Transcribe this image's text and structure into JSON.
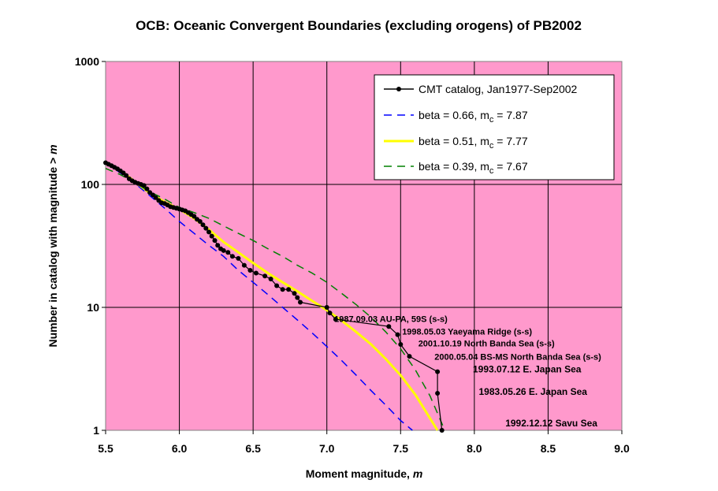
{
  "chart_data": {
    "type": "line",
    "title": "OCB: Oceanic Convergent Boundaries (excluding orogens) of PB2002",
    "xlabel": "Moment magnitude, ",
    "xlabel_italic": "m",
    "ylabel": "Number in catalog with magnitude  >  ",
    "ylabel_italic": "m",
    "xlim": [
      5.5,
      9.0
    ],
    "ylim": [
      1,
      1000
    ],
    "y_scale": "log",
    "grid": true,
    "x_ticks": [
      "5.5",
      "6.0",
      "6.5",
      "7.0",
      "7.5",
      "8.0",
      "8.5",
      "9.0"
    ],
    "y_ticks": [
      "1",
      "10",
      "100",
      "1000"
    ],
    "legend_position": "top-right",
    "colors": {
      "plot_bg": "#ff99cc",
      "catalog": "#000000",
      "beta066": "#0000ff",
      "beta051": "#ffff00",
      "beta039": "#008000"
    },
    "series": [
      {
        "name": "CMT catalog, Jan1977-Sep2002",
        "style": "black-line-markers",
        "points": [
          [
            5.5,
            150
          ],
          [
            5.52,
            146
          ],
          [
            5.54,
            142
          ],
          [
            5.56,
            138
          ],
          [
            5.58,
            134
          ],
          [
            5.6,
            129
          ],
          [
            5.62,
            124
          ],
          [
            5.64,
            118
          ],
          [
            5.66,
            111
          ],
          [
            5.68,
            107
          ],
          [
            5.7,
            104
          ],
          [
            5.72,
            102
          ],
          [
            5.74,
            100
          ],
          [
            5.76,
            98
          ],
          [
            5.78,
            92
          ],
          [
            5.8,
            86
          ],
          [
            5.82,
            82
          ],
          [
            5.84,
            78
          ],
          [
            5.86,
            74
          ],
          [
            5.88,
            71
          ],
          [
            5.9,
            70
          ],
          [
            5.92,
            68
          ],
          [
            5.94,
            66
          ],
          [
            5.96,
            65
          ],
          [
            5.98,
            64
          ],
          [
            6.0,
            63
          ],
          [
            6.02,
            62
          ],
          [
            6.04,
            61
          ],
          [
            6.06,
            59
          ],
          [
            6.08,
            57
          ],
          [
            6.1,
            55
          ],
          [
            6.12,
            52
          ],
          [
            6.14,
            50
          ],
          [
            6.16,
            47
          ],
          [
            6.18,
            44
          ],
          [
            6.2,
            41
          ],
          [
            6.22,
            38
          ],
          [
            6.24,
            35
          ],
          [
            6.26,
            32
          ],
          [
            6.28,
            30
          ],
          [
            6.3,
            29
          ],
          [
            6.33,
            28
          ],
          [
            6.36,
            26
          ],
          [
            6.4,
            25
          ],
          [
            6.44,
            22
          ],
          [
            6.48,
            20
          ],
          [
            6.52,
            19
          ],
          [
            6.58,
            18
          ],
          [
            6.62,
            17
          ],
          [
            6.66,
            15
          ],
          [
            6.7,
            14
          ],
          [
            6.74,
            14
          ],
          [
            6.78,
            13
          ],
          [
            6.8,
            12
          ],
          [
            6.82,
            11
          ],
          [
            7.0,
            10
          ],
          [
            7.02,
            9
          ],
          [
            7.06,
            8
          ],
          [
            7.42,
            7
          ],
          [
            7.48,
            6
          ],
          [
            7.5,
            5
          ],
          [
            7.56,
            4
          ],
          [
            7.75,
            3
          ],
          [
            7.75,
            2
          ],
          [
            7.78,
            1
          ]
        ]
      },
      {
        "name": "beta = 0.66, m",
        "name_sub": "c",
        "name_tail": " = 7.87",
        "style": "blue-dashed",
        "points": [
          [
            5.5,
            150
          ],
          [
            5.6,
            124
          ],
          [
            5.7,
            102
          ],
          [
            5.8,
            81
          ],
          [
            5.9,
            64
          ],
          [
            6.0,
            50
          ],
          [
            6.1,
            40
          ],
          [
            6.2,
            32
          ],
          [
            6.3,
            26
          ],
          [
            6.4,
            20
          ],
          [
            6.5,
            16
          ],
          [
            6.6,
            12.7
          ],
          [
            6.7,
            10
          ],
          [
            6.8,
            7.9
          ],
          [
            6.9,
            6.2
          ],
          [
            7.0,
            4.8
          ],
          [
            7.1,
            3.7
          ],
          [
            7.2,
            2.8
          ],
          [
            7.3,
            2.1
          ],
          [
            7.4,
            1.6
          ],
          [
            7.5,
            1.2
          ],
          [
            7.58,
            1.0
          ]
        ]
      },
      {
        "name": "beta = 0.51, m",
        "name_sub": "c",
        "name_tail": " = 7.77",
        "style": "yellow-solid",
        "points": [
          [
            5.5,
            150
          ],
          [
            5.6,
            130
          ],
          [
            5.7,
            105
          ],
          [
            5.8,
            85
          ],
          [
            5.9,
            72
          ],
          [
            6.0,
            63
          ],
          [
            6.1,
            53
          ],
          [
            6.2,
            43
          ],
          [
            6.3,
            34
          ],
          [
            6.4,
            28
          ],
          [
            6.5,
            23
          ],
          [
            6.6,
            19
          ],
          [
            6.7,
            16
          ],
          [
            6.8,
            13.5
          ],
          [
            6.9,
            11.3
          ],
          [
            7.0,
            9.5
          ],
          [
            7.1,
            7.8
          ],
          [
            7.2,
            6.3
          ],
          [
            7.3,
            5.0
          ],
          [
            7.4,
            3.8
          ],
          [
            7.5,
            2.8
          ],
          [
            7.6,
            1.95
          ],
          [
            7.7,
            1.25
          ],
          [
            7.75,
            1.0
          ]
        ]
      },
      {
        "name": "beta = 0.39, m",
        "name_sub": "c",
        "name_tail": " = 7.67",
        "style": "green-dashed",
        "points": [
          [
            5.5,
            135
          ],
          [
            5.6,
            120
          ],
          [
            5.7,
            103
          ],
          [
            5.8,
            87
          ],
          [
            5.9,
            76
          ],
          [
            6.0,
            65
          ],
          [
            6.1,
            59
          ],
          [
            6.2,
            53
          ],
          [
            6.3,
            46
          ],
          [
            6.4,
            40
          ],
          [
            6.5,
            35
          ],
          [
            6.6,
            30
          ],
          [
            6.7,
            26
          ],
          [
            6.8,
            22
          ],
          [
            6.9,
            19
          ],
          [
            7.0,
            16
          ],
          [
            7.1,
            13
          ],
          [
            7.2,
            10.5
          ],
          [
            7.3,
            8.3
          ],
          [
            7.4,
            6.3
          ],
          [
            7.5,
            4.6
          ],
          [
            7.6,
            3.1
          ],
          [
            7.7,
            1.9
          ],
          [
            7.8,
            1.0
          ]
        ]
      }
    ],
    "annotations": [
      {
        "text": "1987.09.03 AU-PA, 59S (s-s)",
        "x": 7.05,
        "y": 7.6,
        "size": "small"
      },
      {
        "text": "1998.05.03 Yaeyama Ridge (s-s)",
        "x": 7.51,
        "y": 6.0,
        "size": "small"
      },
      {
        "text": "2001.10.19 North Banda Sea (s-s)",
        "x": 7.62,
        "y": 4.8,
        "size": "small"
      },
      {
        "text": "2000.05.04 BS-MS North Banda Sea (s-s)",
        "x": 7.73,
        "y": 3.75,
        "size": "small"
      },
      {
        "text": "1993.07.12 E. Japan Sea",
        "x": 7.99,
        "y": 2.95,
        "size": "big"
      },
      {
        "text": "1983.05.26 E. Japan Sea",
        "x": 8.03,
        "y": 1.95,
        "size": "big"
      },
      {
        "text": "1992.12.12 Savu Sea",
        "x": 8.21,
        "y": 1.08,
        "size": "big"
      }
    ]
  }
}
